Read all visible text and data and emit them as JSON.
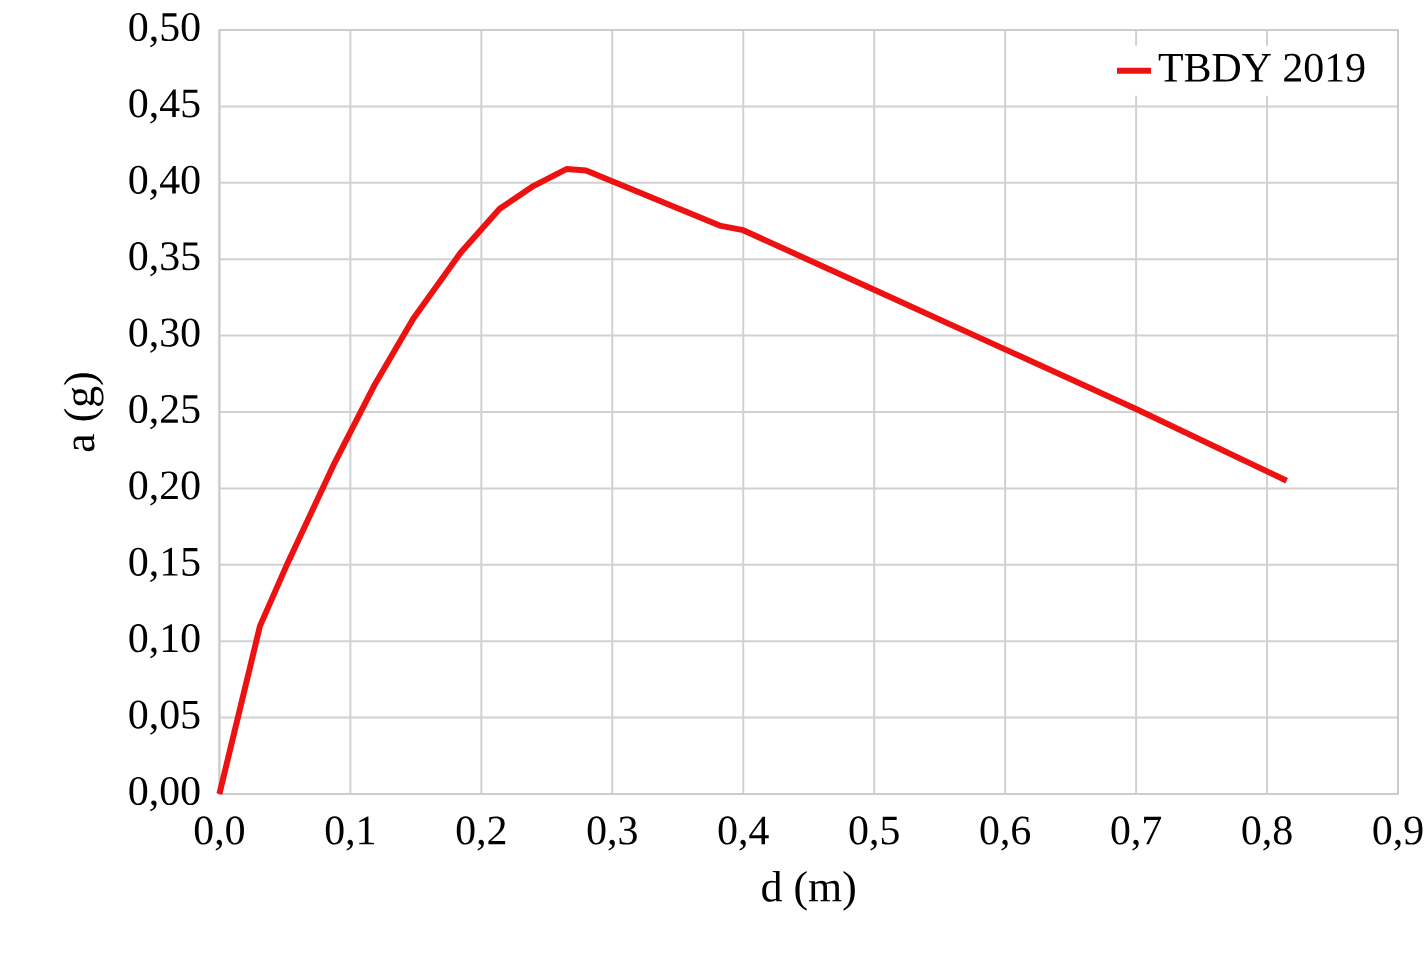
{
  "chart_data": {
    "type": "line",
    "xlabel": "d (m)",
    "ylabel": "a (g)",
    "xlim": [
      0,
      0.9
    ],
    "ylim": [
      0,
      0.5
    ],
    "xticks": [
      {
        "value": 0,
        "label": "0,0"
      },
      {
        "value": 0.1,
        "label": "0,1"
      },
      {
        "value": 0.2,
        "label": "0,2"
      },
      {
        "value": 0.3,
        "label": "0,3"
      },
      {
        "value": 0.4,
        "label": "0,4"
      },
      {
        "value": 0.5,
        "label": "0,5"
      },
      {
        "value": 0.6,
        "label": "0,6"
      },
      {
        "value": 0.7,
        "label": "0,7"
      },
      {
        "value": 0.8,
        "label": "0,8"
      },
      {
        "value": 0.9,
        "label": "0,9"
      }
    ],
    "yticks": [
      {
        "value": 0,
        "label": "0,00"
      },
      {
        "value": 0.05,
        "label": "0,05"
      },
      {
        "value": 0.1,
        "label": "0,10"
      },
      {
        "value": 0.15,
        "label": "0,15"
      },
      {
        "value": 0.2,
        "label": "0,20"
      },
      {
        "value": 0.25,
        "label": "0,25"
      },
      {
        "value": 0.3,
        "label": "0,30"
      },
      {
        "value": 0.35,
        "label": "0,35"
      },
      {
        "value": 0.4,
        "label": "0,40"
      },
      {
        "value": 0.45,
        "label": "0,45"
      },
      {
        "value": 0.5,
        "label": "0,50"
      }
    ],
    "grid": true,
    "legend": "top right",
    "marker": "none",
    "line_style": "solid",
    "series": [
      {
        "name": "TBDY 2019",
        "color": "#ee1111",
        "x": [
          0,
          0.031,
          0.051,
          0.087,
          0.118,
          0.148,
          0.184,
          0.214,
          0.24,
          0.265,
          0.28,
          0.382,
          0.4,
          0.5,
          0.6,
          0.7,
          0.815
        ],
        "values": [
          0,
          0.11,
          0.149,
          0.215,
          0.267,
          0.311,
          0.354,
          0.383,
          0.398,
          0.409,
          0.408,
          0.372,
          0.369,
          0.33,
          0.291,
          0.252,
          0.205
        ]
      }
    ]
  }
}
